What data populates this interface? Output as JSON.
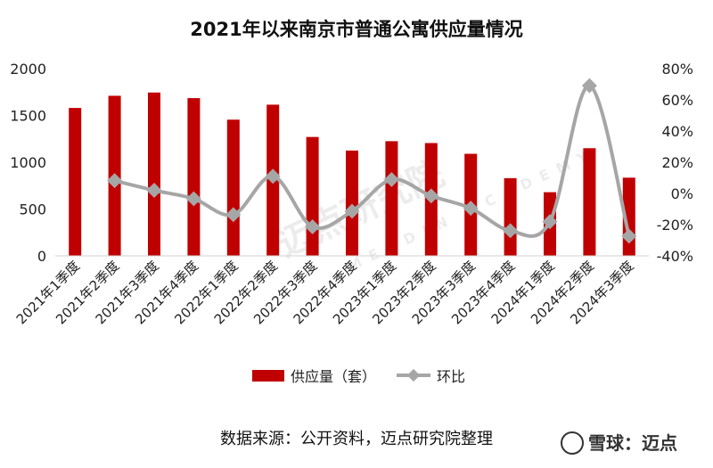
{
  "chart_data": {
    "type": "bar",
    "title": "2021年以来南京市普通公寓供应量情况",
    "categories": [
      "2021年1季度",
      "2021年2季度",
      "2021年3季度",
      "2021年4季度",
      "2022年1季度",
      "2022年2季度",
      "2022年3季度",
      "2022年4季度",
      "2023年1季度",
      "2023年2季度",
      "2023年3季度",
      "2023年4季度",
      "2024年1季度",
      "2024年2季度",
      "2024年3季度"
    ],
    "series": [
      {
        "name": "供应量（套）",
        "type": "bar",
        "axis": "left",
        "color": "#C00000",
        "values": [
          1580,
          1710,
          1745,
          1685,
          1455,
          1615,
          1270,
          1125,
          1225,
          1205,
          1090,
          830,
          680,
          1150,
          835
        ]
      },
      {
        "name": "环比",
        "type": "line",
        "axis": "right",
        "color": "#A6A6A6",
        "values": [
          null,
          8.2,
          2.0,
          -3.4,
          -13.6,
          11.0,
          -21.4,
          -11.4,
          8.9,
          -1.6,
          -9.5,
          -23.9,
          -18.1,
          69.1,
          -27.4
        ]
      }
    ],
    "ylim": [
      0,
      2000
    ],
    "yticks": [
      0,
      500,
      1000,
      1500,
      2000
    ],
    "y2lim": [
      -40,
      80
    ],
    "y2ticks": [
      "-40%",
      "-20%",
      "0%",
      "20%",
      "40%",
      "60%",
      "80%"
    ],
    "legend_position": "bottom",
    "grid": false
  },
  "source_note": "数据来源：公开资料，迈点研究院整理",
  "watermark": {
    "cn": "迈点研究院",
    "en": "MEADIN ACADEMY"
  },
  "brand": "雪球：迈点"
}
